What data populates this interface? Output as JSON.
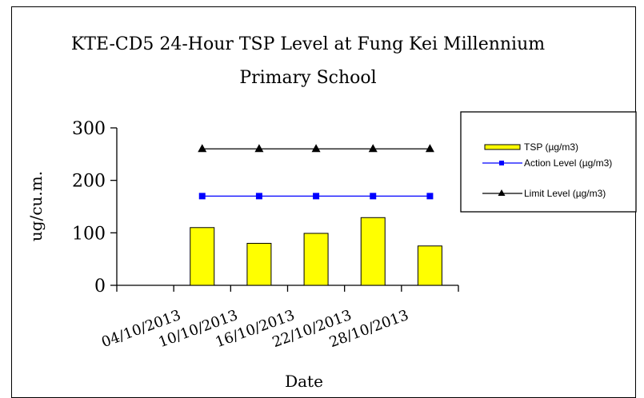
{
  "chart_data": {
    "type": "bar",
    "title_line1": "KTE-CD5 24-Hour TSP Level at Fung Kei Millennium",
    "title_line2": "Primary School",
    "xlabel": "Date",
    "ylabel": "ug/cu.m.",
    "ylim": [
      0,
      300
    ],
    "yticks": [
      "0",
      "100",
      "200",
      "300"
    ],
    "categories": [
      "04/10/2013",
      "10/10/2013",
      "16/10/2013",
      "22/10/2013",
      "28/10/2013"
    ],
    "bar_series": {
      "name": "TSP (µg/m3)",
      "values": [
        110,
        80,
        99,
        129,
        75
      ],
      "color": "#ffff00"
    },
    "line_series": [
      {
        "name": "Action Level (µg/m3)",
        "values": [
          170,
          170,
          170,
          170,
          170
        ],
        "color": "#0000ff",
        "marker": "square"
      },
      {
        "name": "Limit Level (µg/m3)",
        "values": [
          260,
          260,
          260,
          260,
          260
        ],
        "color": "#000000",
        "marker": "triangle"
      }
    ],
    "grid": false,
    "legend_position": "top-right"
  }
}
